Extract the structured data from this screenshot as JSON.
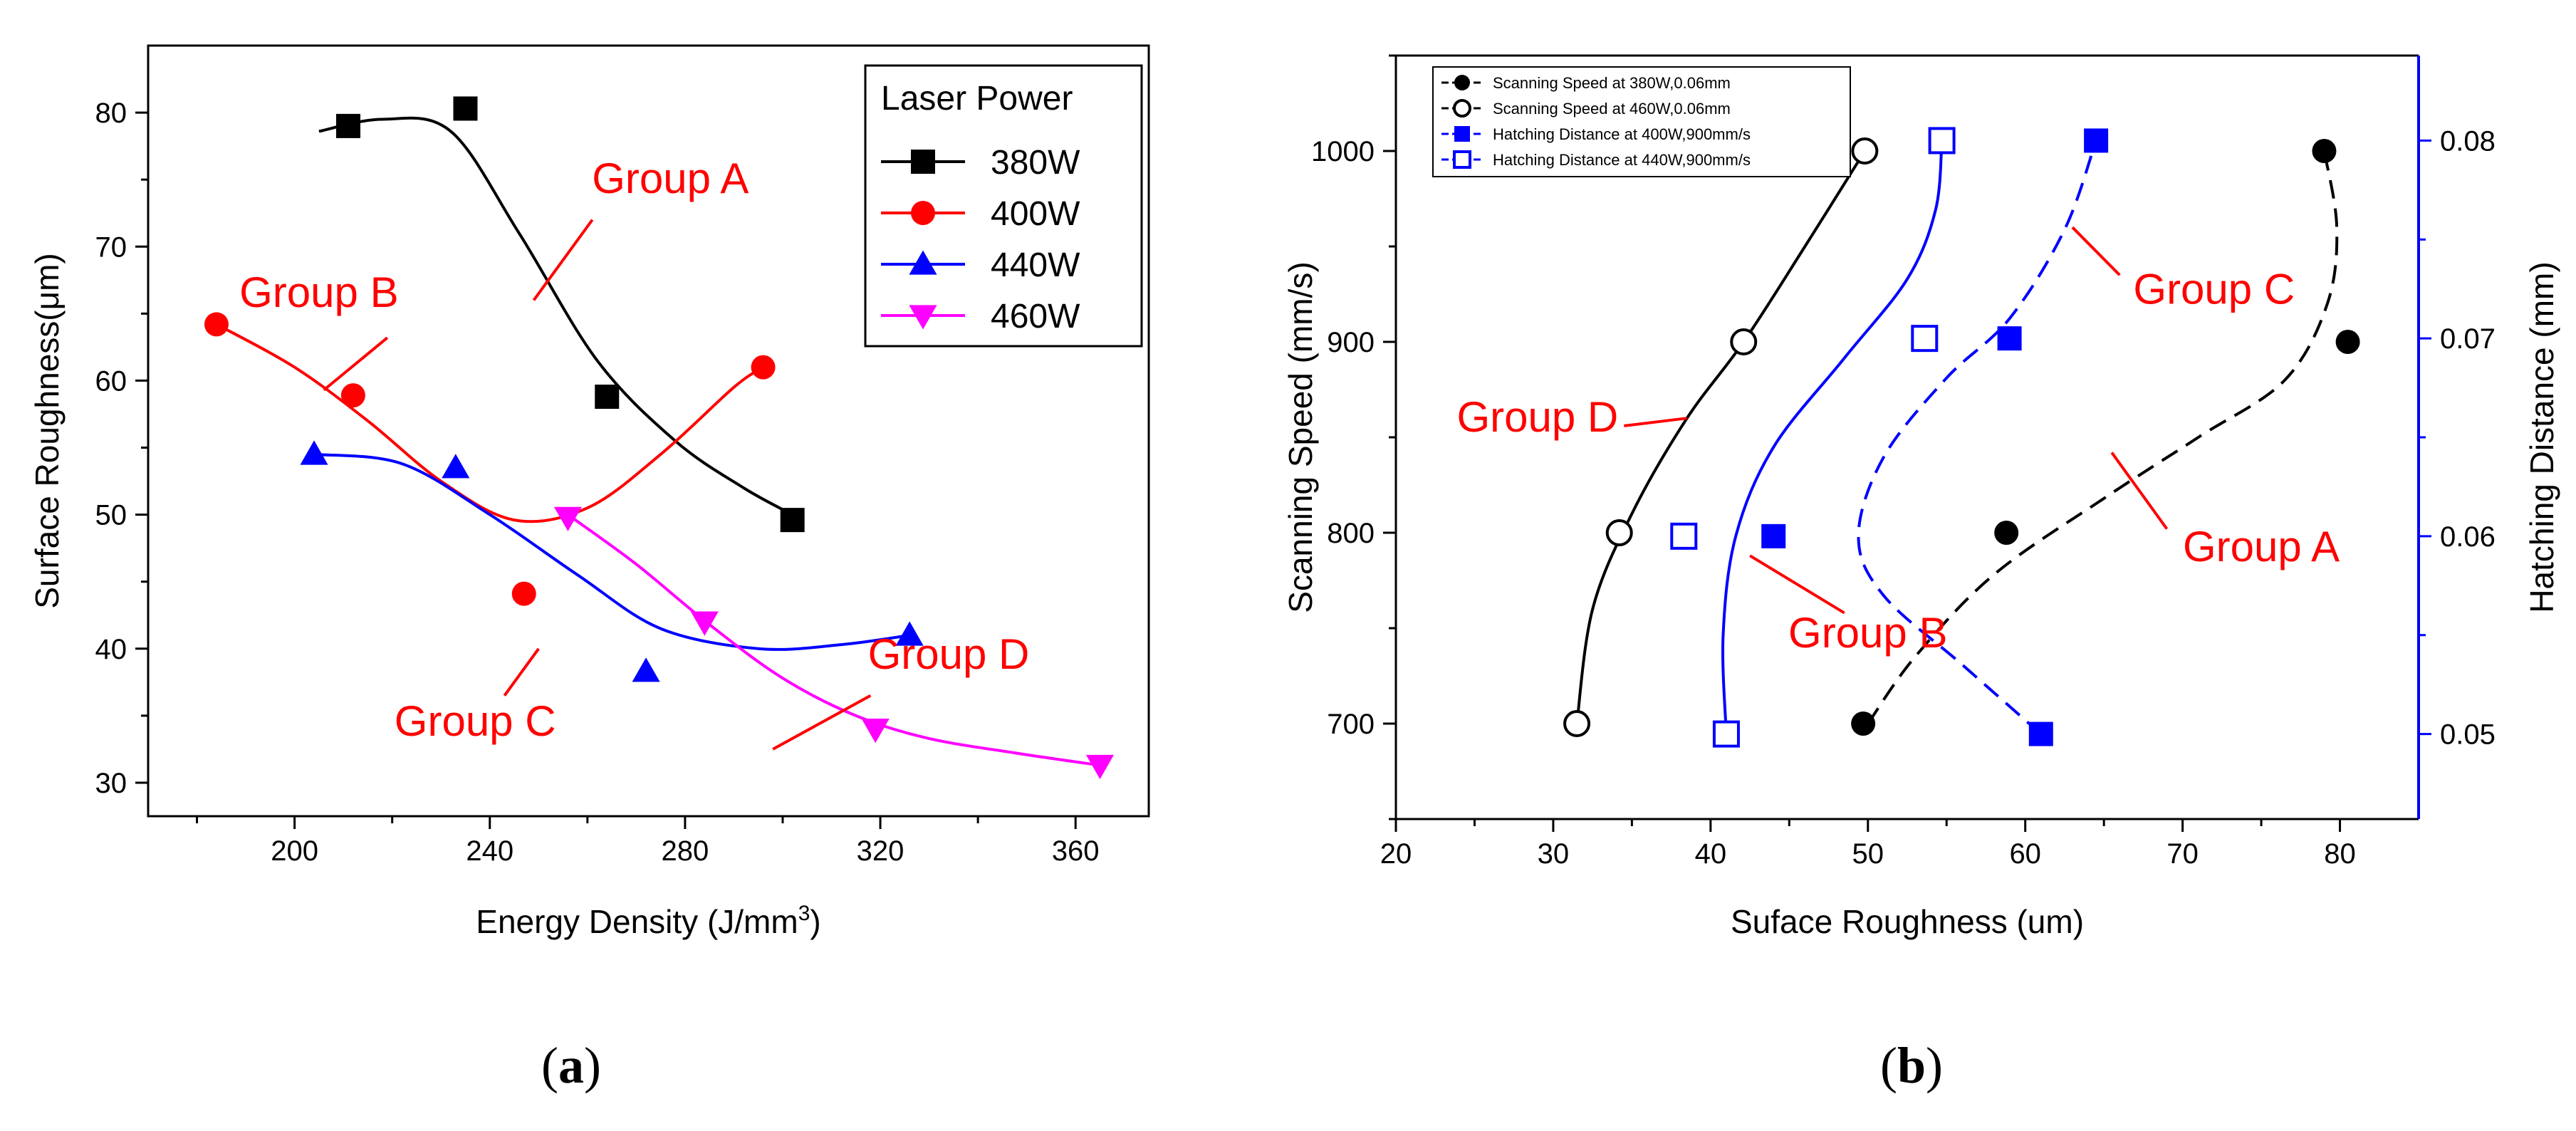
{
  "chart_data": [
    {
      "type": "scatter",
      "caption_letter": "a",
      "xlabel": "Energy Density (J/mm",
      "xlabel_sup": "3",
      "xlabel_tail": ")",
      "ylabel": "Surface Roughness(μm)",
      "xlim": [
        170,
        375
      ],
      "ylim": [
        27.5,
        85
      ],
      "xticks": [
        200,
        240,
        280,
        320,
        360
      ],
      "yticks": [
        30,
        40,
        50,
        60,
        70,
        80
      ],
      "legend_title": "Laser Power",
      "series": [
        {
          "name": "380W",
          "color": "#000000",
          "marker": "square",
          "points": [
            [
              211,
              79
            ],
            [
              235,
              80.3
            ],
            [
              264,
              58.8
            ],
            [
              302,
              49.6
            ]
          ],
          "curve": [
            [
              205,
              78.6
            ],
            [
              218,
              79.5
            ],
            [
              232,
              78.6
            ],
            [
              246,
              71
            ],
            [
              262,
              61.5
            ],
            [
              278,
              55.5
            ],
            [
              292,
              52
            ],
            [
              302,
              50
            ]
          ]
        },
        {
          "name": "400W",
          "color": "#ff0000",
          "marker": "circle",
          "points": [
            [
              184,
              64.2
            ],
            [
              212,
              58.9
            ],
            [
              247,
              44.1
            ],
            [
              296,
              61
            ]
          ],
          "curve": [
            [
              184,
              64.2
            ],
            [
              200,
              61
            ],
            [
              215,
              57
            ],
            [
              230,
              52.5
            ],
            [
              245,
              49.6
            ],
            [
              260,
              50.5
            ],
            [
              275,
              54.5
            ],
            [
              290,
              59.5
            ],
            [
              296,
              61
            ]
          ]
        },
        {
          "name": "440W",
          "color": "#0000ff",
          "marker": "triangle-up",
          "points": [
            [
              204,
              54.5
            ],
            [
              233,
              53.5
            ],
            [
              272,
              38.3
            ],
            [
              326,
              41
            ]
          ],
          "curve": [
            [
              204,
              54.5
            ],
            [
              222,
              53.8
            ],
            [
              240,
              50
            ],
            [
              258,
              45.5
            ],
            [
              275,
              41.5
            ],
            [
              295,
              40
            ],
            [
              312,
              40.3
            ],
            [
              326,
              41
            ]
          ]
        },
        {
          "name": "460W",
          "color": "#ff00ff",
          "marker": "triangle-down",
          "points": [
            [
              256,
              49.8
            ],
            [
              284,
              42
            ],
            [
              319,
              34
            ],
            [
              365,
              31.3
            ]
          ],
          "curve": [
            [
              256,
              50
            ],
            [
              270,
              46.3
            ],
            [
              285,
              41.8
            ],
            [
              300,
              37.8
            ],
            [
              315,
              35
            ],
            [
              330,
              33.3
            ],
            [
              348,
              32.2
            ],
            [
              365,
              31.3
            ]
          ]
        }
      ],
      "annotations": [
        {
          "text": "Group A",
          "color": "#ff0000",
          "x": 277,
          "y": 74,
          "line": [
            [
              261,
              72
            ],
            [
              249,
              66
            ]
          ]
        },
        {
          "text": "Group B",
          "color": "#ff0000",
          "x": 205,
          "y": 65.5,
          "line": [
            [
              219,
              63.2
            ],
            [
              206,
              59.3
            ]
          ]
        },
        {
          "text": "Group C",
          "color": "#ff0000",
          "x": 237,
          "y": 33.5,
          "line": [
            [
              243,
              36.5
            ],
            [
              250,
              40
            ]
          ]
        },
        {
          "text": "Group D",
          "color": "#ff0000",
          "x": 334,
          "y": 38.5,
          "line": [
            [
              318,
              36.5
            ],
            [
              298,
              32.5
            ]
          ]
        }
      ]
    },
    {
      "type": "scatter",
      "caption_letter": "b",
      "xlabel": "Suface Roughness (um)",
      "ylabel": "Scanning Speed (mm/s)",
      "y2label": "Hatching Distance (mm)",
      "xlim": [
        20,
        85
      ],
      "ylim": [
        650,
        1050
      ],
      "y2lim": [
        0.0457,
        0.0843
      ],
      "xticks": [
        20,
        30,
        40,
        50,
        60,
        70,
        80
      ],
      "yticks": [
        700,
        800,
        900,
        1000
      ],
      "y2ticks": [
        0.05,
        0.06,
        0.07,
        0.08
      ],
      "y2tick_labels": [
        "0.05",
        "0.06",
        "0.07",
        "0.08"
      ],
      "legend": [
        {
          "label": "Scanning Speed at 380W,0.06mm",
          "color": "#000000",
          "marker": "circle-filled"
        },
        {
          "label": "Scanning Speed at 460W,0.06mm",
          "color": "#000000",
          "marker": "circle-open"
        },
        {
          "label": "Hatching Distance at 400W,900mm/s",
          "color": "#0000ff",
          "marker": "square-filled"
        },
        {
          "label": "Hatching Distance at 440W,900mm/s",
          "color": "#0000ff",
          "marker": "square-open"
        }
      ],
      "series": [
        {
          "name": "Scanning Speed at 380W,0.06mm",
          "color": "#000000",
          "marker": "circle-filled",
          "dashed": true,
          "axis": "left",
          "points": [
            [
              49.7,
              700
            ],
            [
              58.8,
              800
            ],
            [
              80.5,
              900
            ],
            [
              79,
              1000
            ]
          ],
          "curve": [
            [
              50,
              700
            ],
            [
              53,
              735
            ],
            [
              58,
              778
            ],
            [
              65,
              818
            ],
            [
              71,
              850
            ],
            [
              76.5,
              880
            ],
            [
              79.2,
              920
            ],
            [
              79.8,
              960
            ],
            [
              79,
              1000
            ]
          ]
        },
        {
          "name": "Scanning Speed at 460W,0.06mm",
          "color": "#000000",
          "marker": "circle-open",
          "dashed": false,
          "axis": "left",
          "points": [
            [
              31.5,
              700
            ],
            [
              34.2,
              800
            ],
            [
              42.1,
              900
            ],
            [
              49.8,
              1000
            ]
          ],
          "curve": [
            [
              31.5,
              700
            ],
            [
              32.5,
              760
            ],
            [
              35,
              810
            ],
            [
              38.5,
              860
            ],
            [
              42.1,
              900
            ],
            [
              46,
              950
            ],
            [
              49.8,
              1000
            ]
          ]
        },
        {
          "name": "Hatching Distance at 400W,900mm/s",
          "color": "#0000ff",
          "marker": "square-filled",
          "dashed": true,
          "axis": "right",
          "points": [
            [
              44,
              0.06
            ],
            [
              59,
              0.07
            ],
            [
              64.5,
              0.08
            ],
            [
              61,
              0.05
            ]
          ],
          "curve": [
            [
              61,
              0.05
            ],
            [
              56,
              0.0535
            ],
            [
              51,
              0.057
            ],
            [
              49.4,
              0.06
            ],
            [
              51,
              0.064
            ],
            [
              55,
              0.068
            ],
            [
              59,
              0.071
            ],
            [
              62.5,
              0.0755
            ],
            [
              64.5,
              0.08
            ]
          ]
        },
        {
          "name": "Hatching Distance at 440W,900mm/s",
          "color": "#0000ff",
          "marker": "square-open",
          "dashed": false,
          "axis": "right",
          "points": [
            [
              38.3,
              0.06
            ],
            [
              41,
              0.05
            ],
            [
              53.6,
              0.07
            ],
            [
              54.7,
              0.08
            ]
          ],
          "curve": [
            [
              41,
              0.05
            ],
            [
              40.8,
              0.055
            ],
            [
              41.6,
              0.06
            ],
            [
              44,
              0.0645
            ],
            [
              48.5,
              0.069
            ],
            [
              52.5,
              0.073
            ],
            [
              54.3,
              0.0765
            ],
            [
              54.7,
              0.08
            ]
          ]
        }
      ],
      "annotations": [
        {
          "text": "Group A",
          "color": "#ff0000",
          "x": 75,
          "y": 785,
          "line": [
            [
              69,
              802
            ],
            [
              65.5,
              842
            ]
          ]
        },
        {
          "text": "Group B",
          "color": "#ff0000",
          "x": 50,
          "y": 740,
          "line": [
            [
              48.5,
              758
            ],
            [
              42.5,
              788
            ]
          ]
        },
        {
          "text": "Group C",
          "color": "#ff0000",
          "x": 72,
          "y": 920,
          "line": [
            [
              66,
              935
            ],
            [
              63,
              960
            ]
          ]
        },
        {
          "text": "Group D",
          "color": "#ff0000",
          "x": 29,
          "y": 853,
          "line": [
            [
              34.5,
              856
            ],
            [
              38.5,
              860
            ]
          ]
        }
      ]
    }
  ]
}
